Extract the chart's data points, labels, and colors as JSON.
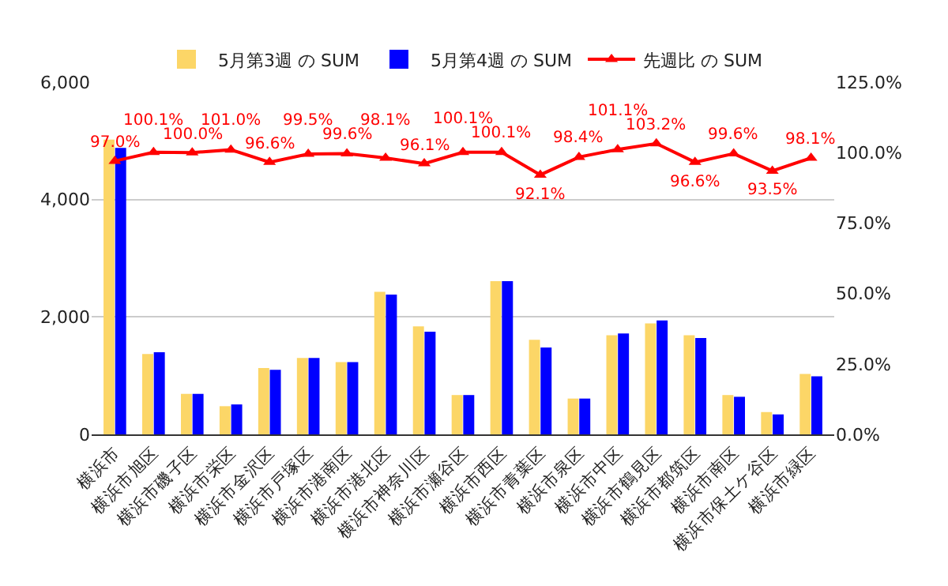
{
  "chart_data": {
    "type": "bar",
    "categories": [
      "横浜市",
      "横浜市旭区",
      "横浜市磯子区",
      "横浜市栄区",
      "横浜市金沢区",
      "横浜市戸塚区",
      "横浜市港南区",
      "横浜市港北区",
      "横浜市神奈川区",
      "横浜市瀬谷区",
      "横浜市西区",
      "横浜市青葉区",
      "横浜市泉区",
      "横浜市中区",
      "横浜市鶴見区",
      "横浜市都筑区",
      "横浜市南区",
      "横浜市保土ケ谷区",
      "横浜市緑区"
    ],
    "series": [
      {
        "name": "5月第3週 の SUM",
        "color": "#fcd667",
        "values": [
          5020,
          1370,
          690,
          480,
          1130,
          1300,
          1230,
          2430,
          1840,
          670,
          2610,
          1610,
          610,
          1690,
          1890,
          1690,
          670,
          380,
          1030
        ]
      },
      {
        "name": "5月第4週 の SUM",
        "color": "#0000ff",
        "values": [
          4880,
          1400,
          690,
          510,
          1100,
          1300,
          1230,
          2380,
          1750,
          670,
          2610,
          1480,
          610,
          1720,
          1940,
          1640,
          640,
          340,
          990
        ]
      },
      {
        "name": "先週比 の SUM",
        "color": "#ff0000",
        "type": "line",
        "axis": "y2",
        "marker": "triangle",
        "values": [
          97.0,
          100.1,
          100.0,
          101.0,
          96.6,
          99.5,
          99.6,
          98.1,
          96.1,
          100.1,
          100.1,
          92.1,
          98.4,
          101.1,
          103.2,
          96.6,
          99.6,
          93.5,
          98.1
        ],
        "value_labels": [
          "97.0%",
          "100.1%",
          "100.0%",
          "101.0%",
          "96.6%",
          "99.5%",
          "99.6%",
          "98.1%",
          "96.1%",
          "100.1%",
          "100.1%",
          "92.1%",
          "98.4%",
          "101.1%",
          "103.2%",
          "96.6%",
          "99.6%",
          "93.5%",
          "98.1%"
        ]
      }
    ],
    "ylim": [
      0,
      6000
    ],
    "yticks": [
      0,
      {
        "value": 2000,
        "label": "2,000"
      },
      {
        "value": 4000,
        "label": "4,000"
      },
      {
        "value": 6000,
        "label": "6,000"
      }
    ],
    "y2lim": [
      0,
      125
    ],
    "y2ticks": [
      {
        "value": 0,
        "label": "0.0%"
      },
      {
        "value": 25,
        "label": "25.0%"
      },
      {
        "value": 50,
        "label": "50.0%"
      },
      {
        "value": 75,
        "label": "75.0%"
      },
      {
        "value": 100,
        "label": "100.0%"
      },
      {
        "value": 125,
        "label": "125.0%"
      }
    ],
    "grid": "y",
    "legend": "top"
  }
}
